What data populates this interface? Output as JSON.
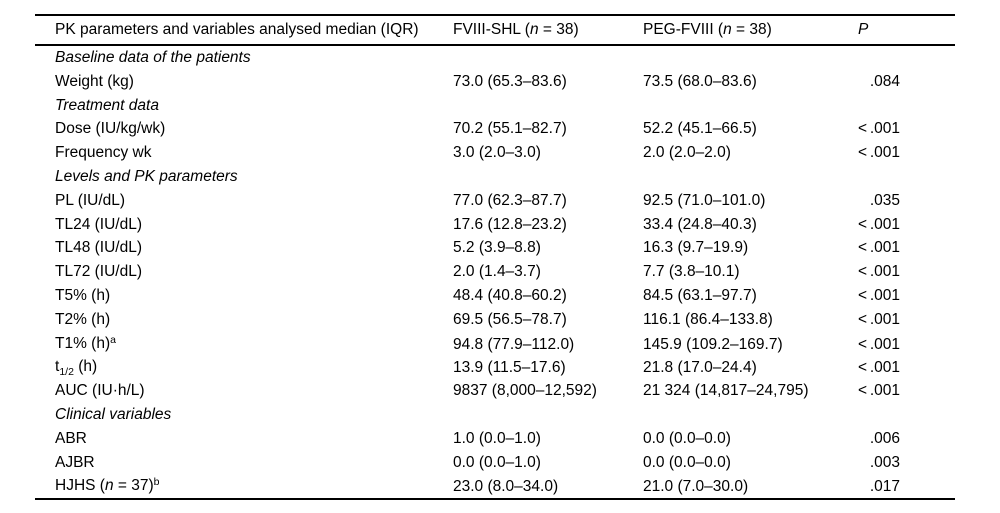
{
  "table": {
    "header": {
      "col1": "PK parameters and variables analysed median (IQR)",
      "col2": [
        {
          "t": "FVIII-SHL ("
        },
        {
          "t": "n",
          "s": "i"
        },
        {
          "t": " = 38)"
        }
      ],
      "col3": [
        {
          "t": "PEG-FVIII ("
        },
        {
          "t": "n",
          "s": "i"
        },
        {
          "t": " = 38)"
        }
      ],
      "col4": [
        {
          "t": "P",
          "s": "i"
        }
      ]
    },
    "p_less_than_symbol": "<",
    "rows": [
      {
        "type": "section",
        "label": [
          {
            "t": "Baseline data of the patients"
          }
        ]
      },
      {
        "type": "data",
        "label": [
          {
            "t": "Weight (kg)"
          }
        ],
        "fviii_shl": "73.0 (65.3–83.6)",
        "peg_fviii": "73.5 (68.0–83.6)",
        "p_lt": false,
        "p": ".084"
      },
      {
        "type": "section",
        "label": [
          {
            "t": "Treatment data"
          }
        ]
      },
      {
        "type": "data",
        "label": [
          {
            "t": "Dose (IU/kg/wk)"
          }
        ],
        "fviii_shl": "70.2 (55.1–82.7)",
        "peg_fviii": "52.2 (45.1–66.5)",
        "p_lt": true,
        "p": ".001"
      },
      {
        "type": "data",
        "label": [
          {
            "t": "Frequency wk"
          }
        ],
        "fviii_shl": "3.0 (2.0–3.0)",
        "peg_fviii": "2.0 (2.0–2.0)",
        "p_lt": true,
        "p": ".001"
      },
      {
        "type": "section",
        "label": [
          {
            "t": "Levels and PK parameters"
          }
        ]
      },
      {
        "type": "data",
        "label": [
          {
            "t": "PL (IU/dL)"
          }
        ],
        "fviii_shl": "77.0 (62.3–87.7)",
        "peg_fviii": "92.5 (71.0–101.0)",
        "p_lt": false,
        "p": ".035"
      },
      {
        "type": "data",
        "label": [
          {
            "t": "TL24 (IU/dL)"
          }
        ],
        "fviii_shl": "17.6 (12.8–23.2)",
        "peg_fviii": "33.4 (24.8–40.3)",
        "p_lt": true,
        "p": ".001"
      },
      {
        "type": "data",
        "label": [
          {
            "t": "TL48 (IU/dL)"
          }
        ],
        "fviii_shl": "5.2 (3.9–8.8)",
        "peg_fviii": "16.3 (9.7–19.9)",
        "p_lt": true,
        "p": ".001"
      },
      {
        "type": "data",
        "label": [
          {
            "t": "TL72 (IU/dL)"
          }
        ],
        "fviii_shl": "2.0 (1.4–3.7)",
        "peg_fviii": "7.7 (3.8–10.1)",
        "p_lt": true,
        "p": ".001"
      },
      {
        "type": "data",
        "label": [
          {
            "t": "T5% (h)"
          }
        ],
        "fviii_shl": "48.4 (40.8–60.2)",
        "peg_fviii": "84.5 (63.1–97.7)",
        "p_lt": true,
        "p": ".001"
      },
      {
        "type": "data",
        "label": [
          {
            "t": "T2% (h)"
          }
        ],
        "fviii_shl": "69.5 (56.5–78.7)",
        "peg_fviii": "116.1 (86.4–133.8)",
        "p_lt": true,
        "p": ".001"
      },
      {
        "type": "data",
        "label": [
          {
            "t": "T1% (h)"
          },
          {
            "t": "a",
            "s": "sup"
          }
        ],
        "fviii_shl": "94.8 (77.9–112.0)",
        "peg_fviii": "145.9 (109.2–169.7)",
        "p_lt": true,
        "p": ".001"
      },
      {
        "type": "data",
        "label": [
          {
            "t": "t"
          },
          {
            "t": "1/2",
            "s": "sub"
          },
          {
            "t": " (h)"
          }
        ],
        "fviii_shl": "13.9 (11.5–17.6)",
        "peg_fviii": "21.8 (17.0–24.4)",
        "p_lt": true,
        "p": ".001"
      },
      {
        "type": "data",
        "label": [
          {
            "t": "AUC (IU·h/L)"
          }
        ],
        "fviii_shl": "9837 (8,000–12,592)",
        "peg_fviii": "21 324 (14,817–24,795)",
        "p_lt": true,
        "p": ".001"
      },
      {
        "type": "section",
        "label": [
          {
            "t": "Clinical variables"
          }
        ]
      },
      {
        "type": "data",
        "label": [
          {
            "t": "ABR"
          }
        ],
        "fviii_shl": "1.0 (0.0–1.0)",
        "peg_fviii": "0.0 (0.0–0.0)",
        "p_lt": false,
        "p": ".006"
      },
      {
        "type": "data",
        "label": [
          {
            "t": "AJBR"
          }
        ],
        "fviii_shl": "0.0 (0.0–1.0)",
        "peg_fviii": "0.0 (0.0–0.0)",
        "p_lt": false,
        "p": ".003"
      },
      {
        "type": "data",
        "label": [
          {
            "t": "HJHS ("
          },
          {
            "t": "n",
            "s": "i"
          },
          {
            "t": " = 37)"
          },
          {
            "t": "b",
            "s": "sup"
          }
        ],
        "fviii_shl": "23.0 (8.0–34.0)",
        "peg_fviii": "21.0 (7.0–30.0)",
        "p_lt": false,
        "p": ".017"
      }
    ]
  }
}
